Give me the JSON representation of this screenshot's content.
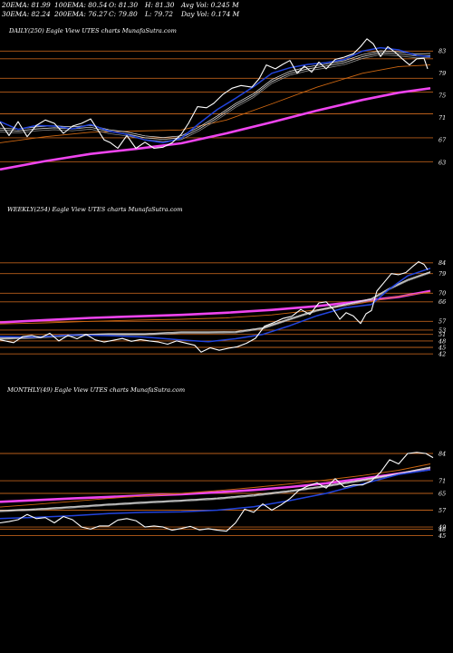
{
  "header": {
    "row1": [
      "20EMA: 81.99",
      "100EMA: 80.54",
      "O: 81.30",
      "H: 81.30",
      "Avg Vol: 0.245 M"
    ],
    "row2": [
      "30EMA: 82.24",
      "200EMA: 76.27",
      "C: 79.80",
      "L: 79.72",
      "Day Vol: 0.174  M"
    ]
  },
  "colors": {
    "background": "#000000",
    "price": "#ffffff",
    "ema20": "#2244dd",
    "ema30": "#e8e8e8",
    "ema100": "#cc6611",
    "ema200": "#ee44ee",
    "level_line": "#b85e1a"
  },
  "chart_data": [
    {
      "type": "line",
      "title": "DAILY(250) Eagle   View  UTES charts MunafaSutra.com",
      "y_ticks": [
        83,
        79,
        75,
        71,
        67,
        63
      ],
      "ylim": [
        62,
        85
      ],
      "n": 250,
      "price": [
        [
          0,
          70.2
        ],
        [
          10,
          67.8
        ],
        [
          20,
          70.3
        ],
        [
          30,
          67.6
        ],
        [
          40,
          69.6
        ],
        [
          50,
          70.6
        ],
        [
          60,
          70.0
        ],
        [
          70,
          68.2
        ],
        [
          80,
          69.5
        ],
        [
          90,
          70.0
        ],
        [
          100,
          70.8
        ],
        [
          106,
          69.3
        ],
        [
          115,
          67.0
        ],
        [
          122,
          66.5
        ],
        [
          130,
          65.5
        ],
        [
          140,
          67.8
        ],
        [
          150,
          65.5
        ],
        [
          160,
          66.6
        ],
        [
          170,
          65.5
        ],
        [
          180,
          65.7
        ],
        [
          190,
          66.5
        ],
        [
          200,
          68.0
        ],
        [
          208,
          70.0
        ],
        [
          218,
          73.0
        ],
        [
          228,
          72.8
        ],
        [
          236,
          73.6
        ],
        [
          246,
          75.2
        ],
        [
          256,
          76.3
        ],
        [
          266,
          76.8
        ],
        [
          278,
          76.5
        ],
        [
          286,
          78.0
        ],
        [
          294,
          80.5
        ],
        [
          304,
          79.8
        ],
        [
          312,
          80.6
        ],
        [
          320,
          81.3
        ],
        [
          328,
          79.0
        ],
        [
          336,
          80.3
        ],
        [
          344,
          79.2
        ],
        [
          352,
          81.0
        ],
        [
          360,
          79.8
        ],
        [
          370,
          81.5
        ],
        [
          380,
          81.9
        ],
        [
          390,
          82.5
        ],
        [
          398,
          83.8
        ],
        [
          405,
          85.2
        ],
        [
          412,
          84.3
        ],
        [
          420,
          82.0
        ],
        [
          428,
          83.8
        ],
        [
          436,
          82.8
        ],
        [
          444,
          81.6
        ],
        [
          452,
          80.5
        ],
        [
          460,
          81.6
        ],
        [
          468,
          81.7
        ],
        [
          472,
          79.8
        ]
      ],
      "ema20": [
        [
          0,
          70.3
        ],
        [
          20,
          68.9
        ],
        [
          40,
          69.6
        ],
        [
          60,
          69.5
        ],
        [
          80,
          69.0
        ],
        [
          100,
          69.8
        ],
        [
          120,
          68.6
        ],
        [
          140,
          68.0
        ],
        [
          160,
          67.0
        ],
        [
          180,
          66.5
        ],
        [
          200,
          67.3
        ],
        [
          220,
          70.0
        ],
        [
          240,
          72.5
        ],
        [
          260,
          74.5
        ],
        [
          280,
          76.6
        ],
        [
          300,
          79.0
        ],
        [
          320,
          80.0
        ],
        [
          340,
          80.6
        ],
        [
          360,
          80.9
        ],
        [
          380,
          81.5
        ],
        [
          400,
          83.0
        ],
        [
          420,
          83.6
        ],
        [
          440,
          83.2
        ],
        [
          460,
          82.2
        ],
        [
          475,
          82.0
        ]
      ],
      "ema30": [
        [
          0,
          68.8
        ],
        [
          20,
          68.6
        ],
        [
          40,
          69.0
        ],
        [
          60,
          69.2
        ],
        [
          80,
          69.0
        ],
        [
          100,
          69.3
        ],
        [
          120,
          68.5
        ],
        [
          140,
          68.1
        ],
        [
          160,
          67.4
        ],
        [
          180,
          67.1
        ],
        [
          200,
          67.4
        ],
        [
          220,
          69.0
        ],
        [
          240,
          71.0
        ],
        [
          260,
          73.2
        ],
        [
          280,
          75.0
        ],
        [
          300,
          77.5
        ],
        [
          320,
          79.0
        ],
        [
          340,
          79.8
        ],
        [
          360,
          80.3
        ],
        [
          380,
          80.9
        ],
        [
          400,
          82.0
        ],
        [
          420,
          82.7
        ],
        [
          440,
          82.5
        ],
        [
          460,
          82.1
        ],
        [
          475,
          82.2
        ]
      ],
      "ema100": [
        [
          0,
          66.5
        ],
        [
          50,
          67.6
        ],
        [
          100,
          68.4
        ],
        [
          150,
          68.6
        ],
        [
          200,
          68.8
        ],
        [
          250,
          70.6
        ],
        [
          300,
          73.5
        ],
        [
          350,
          76.5
        ],
        [
          400,
          79.0
        ],
        [
          440,
          80.2
        ],
        [
          475,
          80.5
        ]
      ],
      "ema200": [
        [
          0,
          61.7
        ],
        [
          50,
          63.2
        ],
        [
          100,
          64.5
        ],
        [
          150,
          65.4
        ],
        [
          200,
          66.4
        ],
        [
          250,
          68.2
        ],
        [
          300,
          70.2
        ],
        [
          350,
          72.3
        ],
        [
          400,
          74.2
        ],
        [
          440,
          75.5
        ],
        [
          475,
          76.3
        ]
      ],
      "levels": [
        83,
        81.6,
        78.1,
        75.6,
        71.7,
        67.4,
        63.1
      ]
    },
    {
      "type": "line",
      "title": "WEEKLY(254) Eagle   View  UTES charts MunafaSutra.com",
      "y_ticks": [
        84,
        79,
        70,
        66,
        57,
        53,
        51,
        48,
        45,
        42
      ],
      "ylim": [
        40,
        86
      ],
      "n": 254,
      "price": [
        [
          0,
          48.5
        ],
        [
          15,
          47.2
        ],
        [
          25,
          50.0
        ],
        [
          35,
          50.5
        ],
        [
          45,
          49.5
        ],
        [
          55,
          51.5
        ],
        [
          65,
          48.0
        ],
        [
          75,
          50.5
        ],
        [
          85,
          49.0
        ],
        [
          95,
          51.0
        ],
        [
          105,
          48.5
        ],
        [
          115,
          47.5
        ],
        [
          125,
          48.3
        ],
        [
          135,
          49.1
        ],
        [
          145,
          47.8
        ],
        [
          155,
          48.6
        ],
        [
          165,
          48.0
        ],
        [
          175,
          47.5
        ],
        [
          185,
          46.5
        ],
        [
          195,
          48.0
        ],
        [
          205,
          47.0
        ],
        [
          215,
          46.0
        ],
        [
          222,
          42.8
        ],
        [
          232,
          44.8
        ],
        [
          242,
          43.7
        ],
        [
          252,
          44.6
        ],
        [
          262,
          45.3
        ],
        [
          272,
          46.9
        ],
        [
          282,
          49.2
        ],
        [
          292,
          54.8
        ],
        [
          302,
          56.4
        ],
        [
          312,
          58.3
        ],
        [
          322,
          59.3
        ],
        [
          332,
          62.5
        ],
        [
          342,
          60.2
        ],
        [
          352,
          65.5
        ],
        [
          360,
          66.0
        ],
        [
          368,
          62.5
        ],
        [
          375,
          58.0
        ],
        [
          382,
          61.0
        ],
        [
          390,
          59.5
        ],
        [
          398,
          56.0
        ],
        [
          404,
          60.5
        ],
        [
          410,
          62.0
        ],
        [
          416,
          71.0
        ],
        [
          424,
          75.0
        ],
        [
          432,
          79.0
        ],
        [
          440,
          78.5
        ],
        [
          448,
          79.5
        ],
        [
          456,
          82.5
        ],
        [
          462,
          84.5
        ],
        [
          468,
          83.3
        ],
        [
          472,
          80.8
        ]
      ],
      "ema20": [
        [
          0,
          50.0
        ],
        [
          40,
          49.8
        ],
        [
          80,
          50.7
        ],
        [
          120,
          50.4
        ],
        [
          160,
          49.8
        ],
        [
          200,
          48.4
        ],
        [
          230,
          47.6
        ],
        [
          260,
          49.0
        ],
        [
          290,
          51.0
        ],
        [
          320,
          55.0
        ],
        [
          350,
          59.6
        ],
        [
          380,
          63.2
        ],
        [
          410,
          64.8
        ],
        [
          430,
          72.0
        ],
        [
          450,
          78.0
        ],
        [
          475,
          81.5
        ]
      ],
      "ema30": [
        [
          0,
          49.0
        ],
        [
          40,
          49.6
        ],
        [
          80,
          50.6
        ],
        [
          120,
          51.0
        ],
        [
          160,
          51.0
        ],
        [
          200,
          51.8
        ],
        [
          230,
          51.8
        ],
        [
          260,
          52.0
        ],
        [
          290,
          53.8
        ],
        [
          320,
          58.0
        ],
        [
          350,
          62.0
        ],
        [
          380,
          64.5
        ],
        [
          410,
          67.2
        ],
        [
          430,
          72.0
        ],
        [
          450,
          76.0
        ],
        [
          475,
          79.6
        ]
      ],
      "ema100": [
        [
          0,
          55.8
        ],
        [
          50,
          56.3
        ],
        [
          100,
          57.0
        ],
        [
          150,
          57.6
        ],
        [
          200,
          58.0
        ],
        [
          250,
          58.6
        ],
        [
          300,
          60.0
        ],
        [
          350,
          62.3
        ],
        [
          400,
          65.5
        ],
        [
          440,
          68.5
        ],
        [
          475,
          70.5
        ]
      ],
      "ema200": [
        [
          0,
          56.5
        ],
        [
          50,
          57.6
        ],
        [
          100,
          58.6
        ],
        [
          150,
          59.3
        ],
        [
          200,
          60.0
        ],
        [
          250,
          61.0
        ],
        [
          300,
          62.3
        ],
        [
          350,
          64.0
        ],
        [
          400,
          66.3
        ],
        [
          440,
          68.3
        ],
        [
          475,
          71.0
        ]
      ],
      "levels": [
        84,
        79,
        70,
        66,
        57,
        53,
        51,
        48,
        45,
        42
      ]
    },
    {
      "type": "line",
      "title": "MONTHLY(49) Eagle   View  UTES charts MunafaSutra.com",
      "y_ticks": [
        84,
        71,
        65,
        57,
        49,
        48,
        45
      ],
      "ylim": [
        43,
        87
      ],
      "n": 49,
      "price": [
        [
          0,
          51.0
        ],
        [
          10,
          51.6
        ],
        [
          20,
          52.5
        ],
        [
          30,
          55.0
        ],
        [
          40,
          53.0
        ],
        [
          50,
          53.5
        ],
        [
          60,
          51.0
        ],
        [
          70,
          54.0
        ],
        [
          80,
          52.5
        ],
        [
          90,
          49.0
        ],
        [
          100,
          48.0
        ],
        [
          110,
          49.5
        ],
        [
          120,
          49.5
        ],
        [
          130,
          52.3
        ],
        [
          140,
          53.0
        ],
        [
          150,
          52.0
        ],
        [
          160,
          49.0
        ],
        [
          170,
          49.5
        ],
        [
          180,
          49.0
        ],
        [
          190,
          47.5
        ],
        [
          200,
          48.3
        ],
        [
          210,
          49.3
        ],
        [
          220,
          47.6
        ],
        [
          230,
          48.2
        ],
        [
          240,
          47.5
        ],
        [
          250,
          47.0
        ],
        [
          260,
          51.0
        ],
        [
          270,
          57.5
        ],
        [
          280,
          56.0
        ],
        [
          290,
          60.0
        ],
        [
          300,
          57.0
        ],
        [
          310,
          59.5
        ],
        [
          320,
          62.5
        ],
        [
          330,
          66.5
        ],
        [
          340,
          68.5
        ],
        [
          350,
          70.0
        ],
        [
          360,
          67.5
        ],
        [
          370,
          72.0
        ],
        [
          380,
          68.0
        ],
        [
          390,
          69.0
        ],
        [
          400,
          69.0
        ],
        [
          410,
          71.0
        ],
        [
          420,
          75.0
        ],
        [
          430,
          81.0
        ],
        [
          440,
          79.0
        ],
        [
          450,
          84.0
        ],
        [
          460,
          84.5
        ],
        [
          470,
          84.0
        ],
        [
          478,
          82.0
        ]
      ],
      "ema20": [
        [
          0,
          53.0
        ],
        [
          40,
          53.6
        ],
        [
          80,
          54.4
        ],
        [
          120,
          55.4
        ],
        [
          160,
          56.0
        ],
        [
          200,
          56.2
        ],
        [
          240,
          57.0
        ],
        [
          280,
          58.6
        ],
        [
          320,
          61.6
        ],
        [
          360,
          65.0
        ],
        [
          400,
          69.5
        ],
        [
          440,
          74.0
        ],
        [
          475,
          76.2
        ]
      ],
      "ema30": [
        [
          0,
          56.6
        ],
        [
          40,
          57.3
        ],
        [
          80,
          58.4
        ],
        [
          120,
          59.6
        ],
        [
          160,
          60.6
        ],
        [
          200,
          61.5
        ],
        [
          240,
          62.5
        ],
        [
          280,
          64.0
        ],
        [
          320,
          66.0
        ],
        [
          360,
          68.4
        ],
        [
          400,
          71.2
        ],
        [
          440,
          74.2
        ],
        [
          475,
          77.2
        ]
      ],
      "ema100": [
        [
          0,
          58.5
        ],
        [
          40,
          59.8
        ],
        [
          80,
          61.2
        ],
        [
          120,
          62.6
        ],
        [
          160,
          63.8
        ],
        [
          200,
          65.0
        ],
        [
          240,
          66.3
        ],
        [
          280,
          67.8
        ],
        [
          320,
          69.5
        ],
        [
          360,
          71.4
        ],
        [
          400,
          73.5
        ],
        [
          440,
          76.0
        ],
        [
          475,
          79.0
        ]
      ],
      "ema200": [
        [
          0,
          61.0
        ],
        [
          40,
          61.8
        ],
        [
          80,
          62.6
        ],
        [
          120,
          63.3
        ],
        [
          160,
          64.0
        ],
        [
          200,
          64.6
        ],
        [
          240,
          65.5
        ],
        [
          280,
          66.6
        ],
        [
          320,
          68.0
        ],
        [
          360,
          69.8
        ],
        [
          400,
          72.0
        ],
        [
          440,
          74.4
        ],
        [
          475,
          76.5
        ]
      ],
      "levels": [
        84,
        71,
        65,
        57,
        49,
        48,
        45
      ]
    }
  ]
}
